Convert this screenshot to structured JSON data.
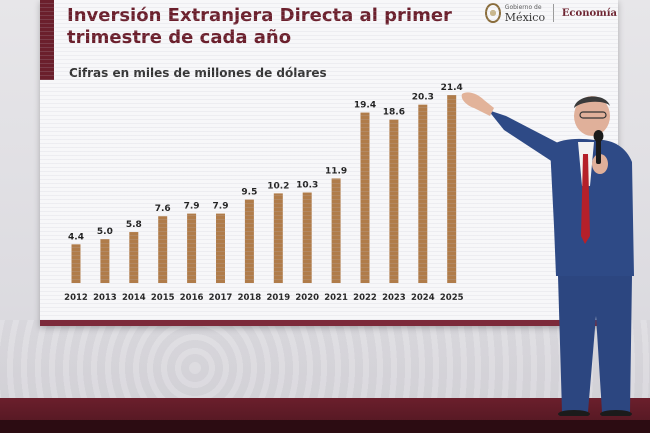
{
  "slide": {
    "title": "Inversión Extranjera Directa al primer trimestre de cada año",
    "subtitle": "Cifras en miles de millones de dólares",
    "logo": {
      "gob_top": "Gobierno de",
      "gob_main": "México",
      "secretaria": "Economía"
    }
  },
  "colors": {
    "bar": "#b07c4a",
    "accent": "#6b1f2c"
  },
  "chart_data": {
    "type": "bar",
    "title": "Inversión Extranjera Directa al primer trimestre de cada año",
    "subtitle": "Cifras en miles de millones de dólares",
    "categories": [
      "2012",
      "2013",
      "2014",
      "2015",
      "2016",
      "2017",
      "2018",
      "2019",
      "2020",
      "2021",
      "2022",
      "2023",
      "2024",
      "2025"
    ],
    "values": [
      4.4,
      5.0,
      5.8,
      7.6,
      7.9,
      7.9,
      9.5,
      10.2,
      10.3,
      11.9,
      19.4,
      18.6,
      20.3,
      21.4
    ],
    "value_labels": [
      "4.4",
      "5.0",
      "5.8",
      "7.6",
      "7.9",
      "7.9",
      "9.5",
      "10.2",
      "10.3",
      "11.9",
      "19.4",
      "18.6",
      "20.3",
      "21.4"
    ],
    "xlabel": "",
    "ylabel": "",
    "ylim": [
      0,
      22
    ],
    "grid": false,
    "legend": "none"
  }
}
